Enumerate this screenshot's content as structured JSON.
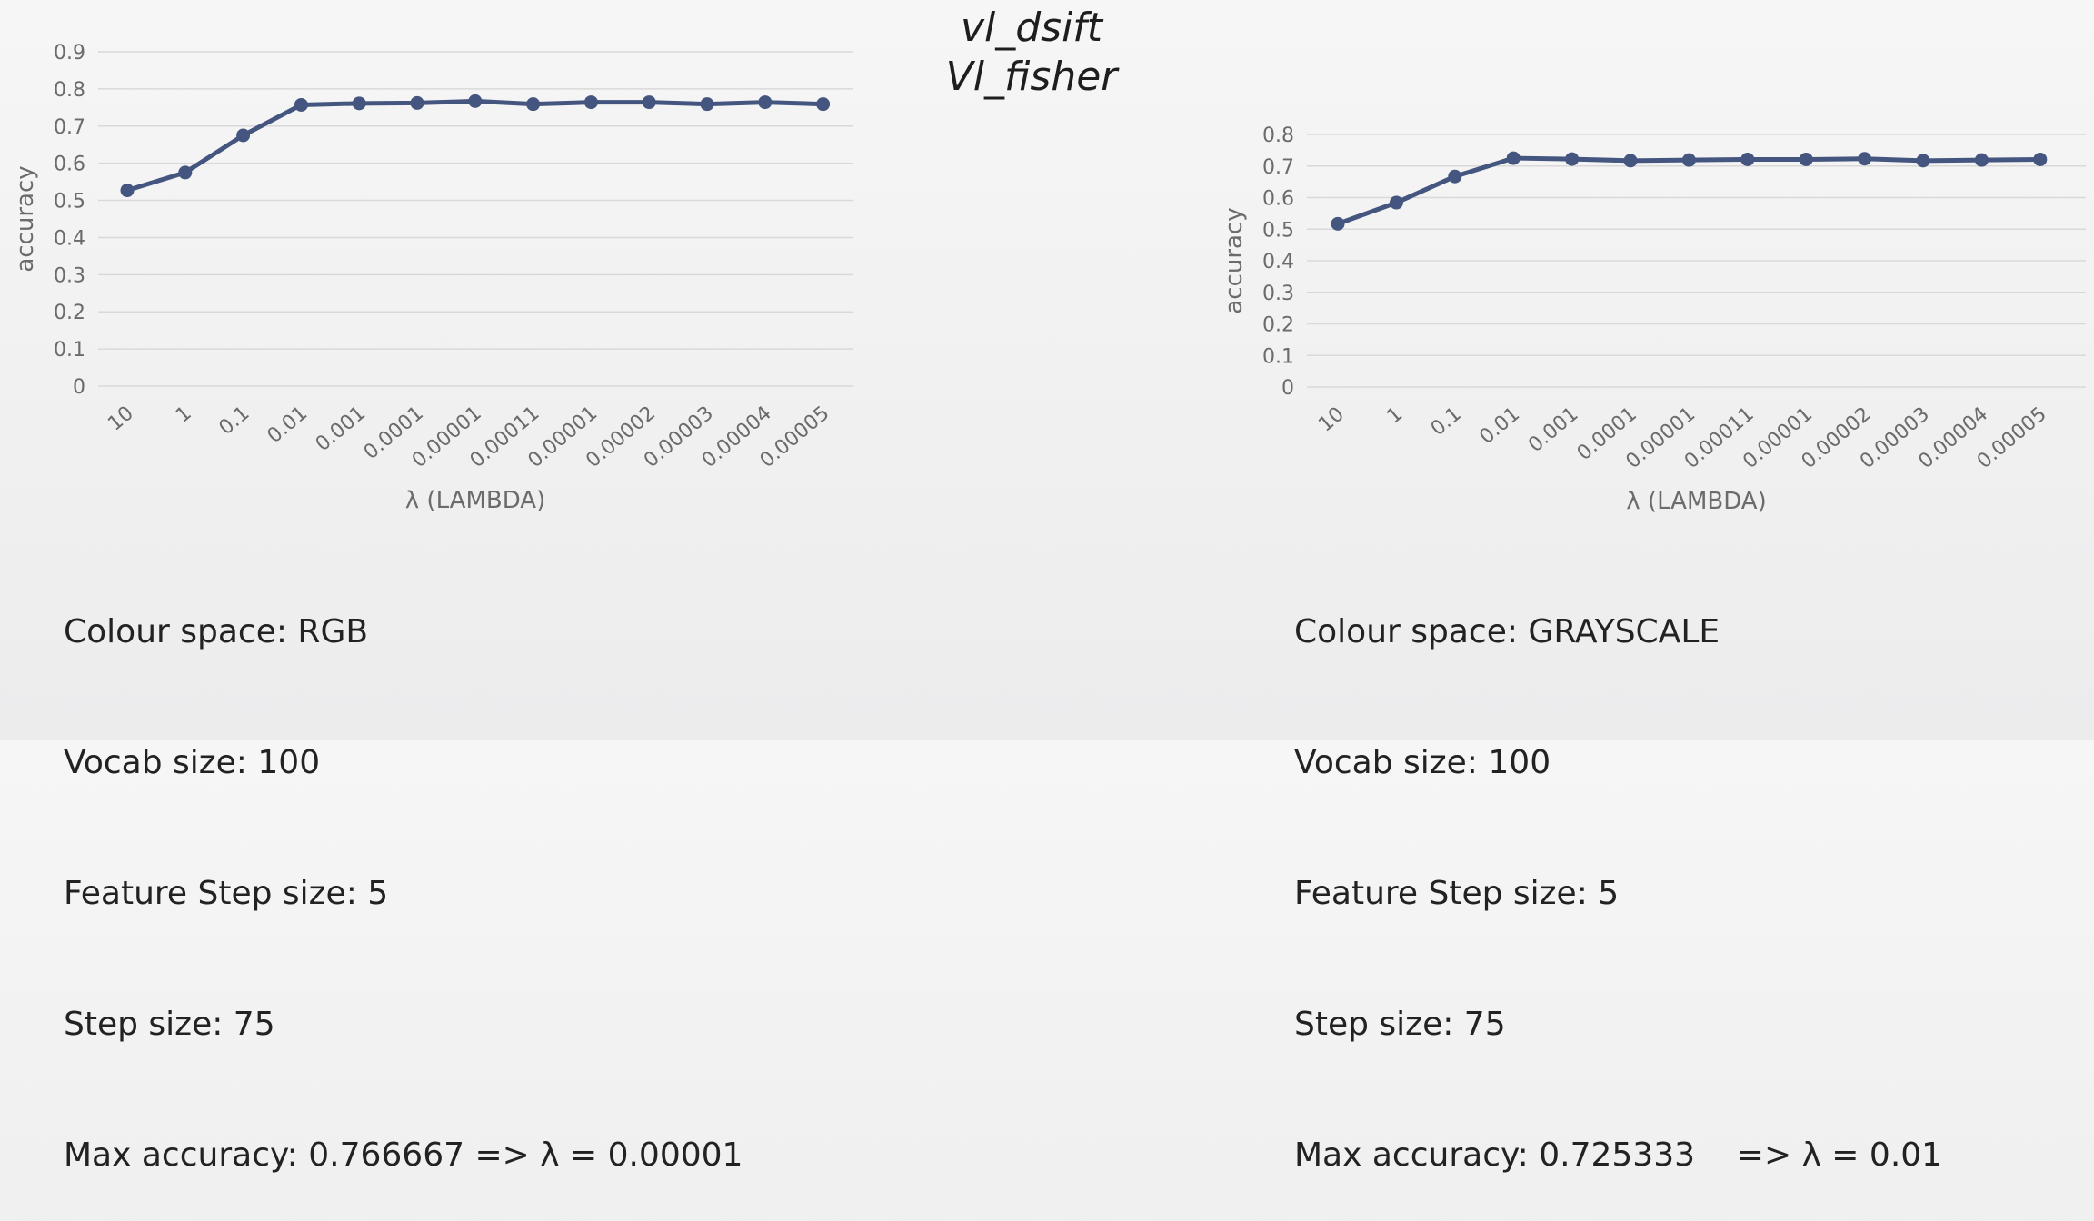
{
  "title_line1": "vl_dsift",
  "title_line2": "Vl_fisher",
  "accent_color": "#44557f",
  "chart_data": [
    {
      "type": "line",
      "xlabel": "λ (LAMBDA)",
      "ylabel": "accuracy",
      "categories": [
        "10",
        "1",
        "0.1",
        "0.01",
        "0.001",
        "0.0001",
        "0.00001",
        "0.00011",
        "0.00001",
        "0.00002",
        "0.00003",
        "0.00004",
        "0.00005"
      ],
      "values": [
        0.527,
        0.575,
        0.675,
        0.757,
        0.761,
        0.762,
        0.767,
        0.759,
        0.764,
        0.764,
        0.759,
        0.764,
        0.759
      ],
      "ylim": [
        0,
        0.9
      ],
      "yticks": [
        "0",
        "0.1",
        "0.2",
        "0.3",
        "0.4",
        "0.5",
        "0.6",
        "0.7",
        "0.8",
        "0.9"
      ],
      "grid": true
    },
    {
      "type": "line",
      "xlabel": "λ (LAMBDA)",
      "ylabel": "accuracy",
      "categories": [
        "10",
        "1",
        "0.1",
        "0.01",
        "0.001",
        "0.0001",
        "0.00001",
        "0.00011",
        "0.00001",
        "0.00002",
        "0.00003",
        "0.00004",
        "0.00005"
      ],
      "values": [
        0.517,
        0.584,
        0.667,
        0.725,
        0.722,
        0.717,
        0.719,
        0.721,
        0.721,
        0.723,
        0.717,
        0.719,
        0.721
      ],
      "ylim": [
        0,
        0.8
      ],
      "yticks": [
        "0",
        "0.1",
        "0.2",
        "0.3",
        "0.4",
        "0.5",
        "0.6",
        "0.7",
        "0.8"
      ],
      "grid": true
    }
  ],
  "info_left": [
    "Colour space: RGB",
    "Vocab size: 100",
    "Feature Step size: 5",
    "Step size: 75",
    "Max accuracy: 0.766667 => λ = 0.00001"
  ],
  "info_right": [
    "Colour space: GRAYSCALE",
    "Vocab size: 100",
    "Feature Step size: 5",
    "Step size: 75",
    "Max accuracy: 0.725333    => λ = 0.01"
  ]
}
